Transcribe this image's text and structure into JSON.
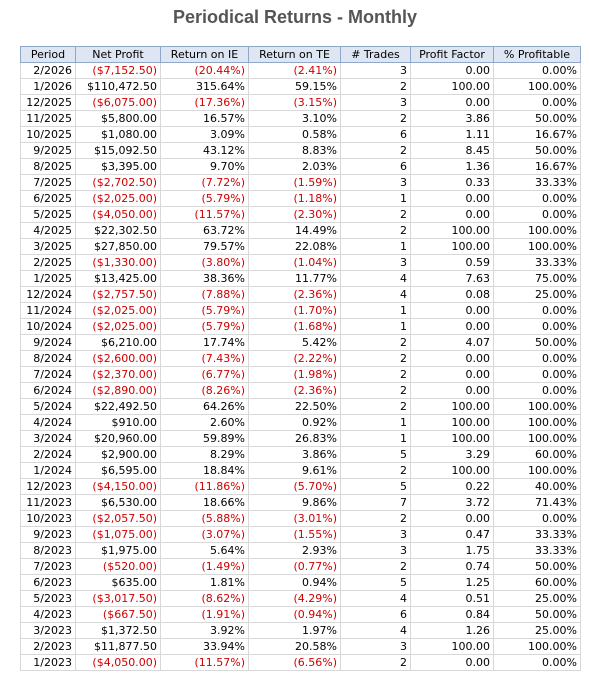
{
  "title": "Periodical Returns - Monthly",
  "table": {
    "columns": [
      "Period",
      "Net Profit",
      "Return on IE",
      "Return on TE",
      "# Trades",
      "Profit Factor",
      "% Profitable"
    ],
    "rows": [
      [
        "2/2026",
        "($7,152.50)",
        "(20.44%)",
        "(2.41%)",
        "3",
        "0.00",
        "0.00%"
      ],
      [
        "1/2026",
        "$110,472.50",
        "315.64%",
        "59.15%",
        "2",
        "100.00",
        "100.00%"
      ],
      [
        "12/2025",
        "($6,075.00)",
        "(17.36%)",
        "(3.15%)",
        "3",
        "0.00",
        "0.00%"
      ],
      [
        "11/2025",
        "$5,800.00",
        "16.57%",
        "3.10%",
        "2",
        "3.86",
        "50.00%"
      ],
      [
        "10/2025",
        "$1,080.00",
        "3.09%",
        "0.58%",
        "6",
        "1.11",
        "16.67%"
      ],
      [
        "9/2025",
        "$15,092.50",
        "43.12%",
        "8.83%",
        "2",
        "8.45",
        "50.00%"
      ],
      [
        "8/2025",
        "$3,395.00",
        "9.70%",
        "2.03%",
        "6",
        "1.36",
        "16.67%"
      ],
      [
        "7/2025",
        "($2,702.50)",
        "(7.72%)",
        "(1.59%)",
        "3",
        "0.33",
        "33.33%"
      ],
      [
        "6/2025",
        "($2,025.00)",
        "(5.79%)",
        "(1.18%)",
        "1",
        "0.00",
        "0.00%"
      ],
      [
        "5/2025",
        "($4,050.00)",
        "(11.57%)",
        "(2.30%)",
        "2",
        "0.00",
        "0.00%"
      ],
      [
        "4/2025",
        "$22,302.50",
        "63.72%",
        "14.49%",
        "2",
        "100.00",
        "100.00%"
      ],
      [
        "3/2025",
        "$27,850.00",
        "79.57%",
        "22.08%",
        "1",
        "100.00",
        "100.00%"
      ],
      [
        "2/2025",
        "($1,330.00)",
        "(3.80%)",
        "(1.04%)",
        "3",
        "0.59",
        "33.33%"
      ],
      [
        "1/2025",
        "$13,425.00",
        "38.36%",
        "11.77%",
        "4",
        "7.63",
        "75.00%"
      ],
      [
        "12/2024",
        "($2,757.50)",
        "(7.88%)",
        "(2.36%)",
        "4",
        "0.08",
        "25.00%"
      ],
      [
        "11/2024",
        "($2,025.00)",
        "(5.79%)",
        "(1.70%)",
        "1",
        "0.00",
        "0.00%"
      ],
      [
        "10/2024",
        "($2,025.00)",
        "(5.79%)",
        "(1.68%)",
        "1",
        "0.00",
        "0.00%"
      ],
      [
        "9/2024",
        "$6,210.00",
        "17.74%",
        "5.42%",
        "2",
        "4.07",
        "50.00%"
      ],
      [
        "8/2024",
        "($2,600.00)",
        "(7.43%)",
        "(2.22%)",
        "2",
        "0.00",
        "0.00%"
      ],
      [
        "7/2024",
        "($2,370.00)",
        "(6.77%)",
        "(1.98%)",
        "2",
        "0.00",
        "0.00%"
      ],
      [
        "6/2024",
        "($2,890.00)",
        "(8.26%)",
        "(2.36%)",
        "2",
        "0.00",
        "0.00%"
      ],
      [
        "5/2024",
        "$22,492.50",
        "64.26%",
        "22.50%",
        "2",
        "100.00",
        "100.00%"
      ],
      [
        "4/2024",
        "$910.00",
        "2.60%",
        "0.92%",
        "1",
        "100.00",
        "100.00%"
      ],
      [
        "3/2024",
        "$20,960.00",
        "59.89%",
        "26.83%",
        "1",
        "100.00",
        "100.00%"
      ],
      [
        "2/2024",
        "$2,900.00",
        "8.29%",
        "3.86%",
        "5",
        "3.29",
        "60.00%"
      ],
      [
        "1/2024",
        "$6,595.00",
        "18.84%",
        "9.61%",
        "2",
        "100.00",
        "100.00%"
      ],
      [
        "12/2023",
        "($4,150.00)",
        "(11.86%)",
        "(5.70%)",
        "5",
        "0.22",
        "40.00%"
      ],
      [
        "11/2023",
        "$6,530.00",
        "18.66%",
        "9.86%",
        "7",
        "3.72",
        "71.43%"
      ],
      [
        "10/2023",
        "($2,057.50)",
        "(5.88%)",
        "(3.01%)",
        "2",
        "0.00",
        "0.00%"
      ],
      [
        "9/2023",
        "($1,075.00)",
        "(3.07%)",
        "(1.55%)",
        "3",
        "0.47",
        "33.33%"
      ],
      [
        "8/2023",
        "$1,975.00",
        "5.64%",
        "2.93%",
        "3",
        "1.75",
        "33.33%"
      ],
      [
        "7/2023",
        "($520.00)",
        "(1.49%)",
        "(0.77%)",
        "2",
        "0.74",
        "50.00%"
      ],
      [
        "6/2023",
        "$635.00",
        "1.81%",
        "0.94%",
        "5",
        "1.25",
        "60.00%"
      ],
      [
        "5/2023",
        "($3,017.50)",
        "(8.62%)",
        "(4.29%)",
        "4",
        "0.51",
        "25.00%"
      ],
      [
        "4/2023",
        "($667.50)",
        "(1.91%)",
        "(0.94%)",
        "6",
        "0.84",
        "50.00%"
      ],
      [
        "3/2023",
        "$1,372.50",
        "3.92%",
        "1.97%",
        "4",
        "1.26",
        "25.00%"
      ],
      [
        "2/2023",
        "$11,877.50",
        "33.94%",
        "20.58%",
        "3",
        "100.00",
        "100.00%"
      ],
      [
        "1/2023",
        "($4,050.00)",
        "(11.57%)",
        "(6.56%)",
        "2",
        "0.00",
        "0.00%"
      ]
    ]
  }
}
